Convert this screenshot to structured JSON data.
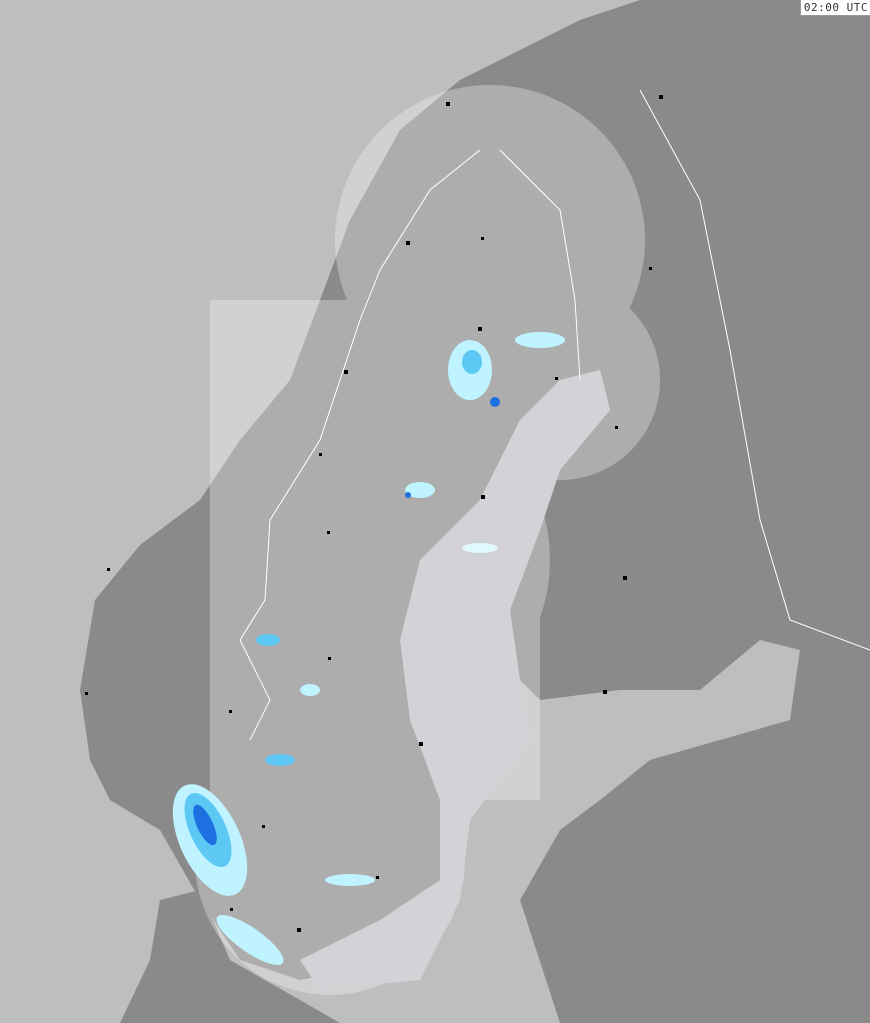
{
  "timestamp": "02:00 UTC",
  "colors": {
    "sea": "#bebebe",
    "land": "#8a8a8a",
    "coverage_land": "#a9a9ad",
    "coverage_sea": "#d3d3d7",
    "radar_light": "#bff3ff",
    "radar_mid": "#5ec8f5",
    "radar_strong": "#1e6fe0",
    "border": "#ffffff"
  },
  "legend": {
    "radar_echo_icon": "precipitation-echo",
    "city_icon": "square-marker"
  }
}
